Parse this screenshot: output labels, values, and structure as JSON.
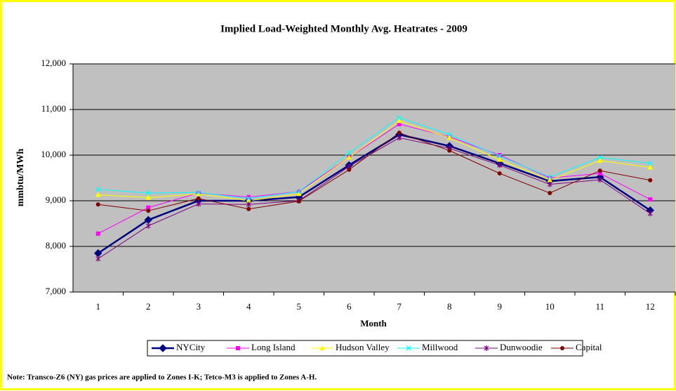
{
  "chart_data": {
    "type": "line",
    "title": "Implied Load-Weighted Monthly Avg. Heatrates - 2009",
    "x_label": "Month",
    "y_label": "mmbtu/MWh",
    "note": "Note: Transco-Z6 (NY) gas prices are applied to Zones I-K; Tetco-M3 is applied to Zones A-H.",
    "categories": [
      "1",
      "2",
      "3",
      "4",
      "5",
      "6",
      "7",
      "8",
      "9",
      "10",
      "11",
      "12"
    ],
    "ylim": [
      7000,
      12000
    ],
    "yticks": [
      {
        "value": 7000,
        "label": "7,000"
      },
      {
        "value": 8000,
        "label": "8,000"
      },
      {
        "value": 9000,
        "label": "9,000"
      },
      {
        "value": 10000,
        "label": "10,000"
      },
      {
        "value": 11000,
        "label": "11,000"
      },
      {
        "value": 12000,
        "label": "12,000"
      }
    ],
    "grid": true,
    "legend": "bottom",
    "series": [
      {
        "name": "NYCity",
        "color": "#000080",
        "marker": "diamond",
        "linewidth": 2.5,
        "values": [
          7850,
          8580,
          9000,
          9000,
          9080,
          9780,
          10450,
          10200,
          9820,
          9430,
          9520,
          8790
        ]
      },
      {
        "name": "Long Island",
        "color": "#ff00ff",
        "marker": "square",
        "linewidth": 1,
        "values": [
          8280,
          8850,
          9170,
          9080,
          9200,
          9950,
          10680,
          10400,
          10000,
          9500,
          9600,
          9030
        ]
      },
      {
        "name": "Hudson Valley",
        "color": "#ffff00",
        "marker": "triangle",
        "linewidth": 1,
        "values": [
          9130,
          9070,
          9150,
          9000,
          9150,
          9950,
          10750,
          10380,
          9900,
          9450,
          9880,
          9730
        ]
      },
      {
        "name": "Millwood",
        "color": "#00ffff",
        "marker": "x",
        "linewidth": 1,
        "values": [
          9250,
          9170,
          9180,
          9050,
          9200,
          10050,
          10820,
          10450,
          9980,
          9520,
          9950,
          9820
        ]
      },
      {
        "name": "Dunwoodie",
        "color": "#800080",
        "marker": "star",
        "linewidth": 1,
        "values": [
          7730,
          8450,
          8930,
          8920,
          9000,
          9750,
          10380,
          10150,
          9780,
          9360,
          9460,
          8720
        ]
      },
      {
        "name": "Capital",
        "color": "#800000",
        "marker": "circle",
        "linewidth": 1,
        "values": [
          8920,
          8780,
          9050,
          8820,
          8990,
          9680,
          10490,
          10100,
          9600,
          9170,
          9660,
          9450
        ]
      }
    ]
  }
}
